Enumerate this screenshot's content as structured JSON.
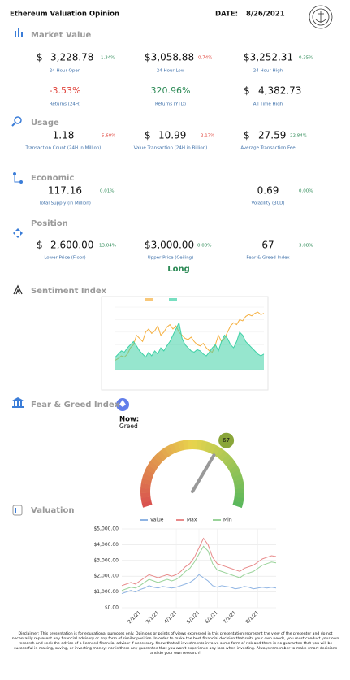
{
  "header": {
    "title": "Ethereum Valuation Opinion",
    "date_label": "DATE:",
    "date": "8/26/2021"
  },
  "market_value": {
    "title": "Market Value",
    "items": [
      {
        "prefix": "$",
        "value": "3,228.78",
        "change": "1.34%",
        "label": "24 Hour Open"
      },
      {
        "value": "$3,058.88",
        "change": "-0.74%",
        "label": "24 Hour Low"
      },
      {
        "value": "$3,252.31",
        "change": "0.35%",
        "label": "24 Hour High"
      },
      {
        "value": "-3.53%",
        "label": "Returns (24H)"
      },
      {
        "value": "320.96%",
        "label": "Returns (YTD)"
      },
      {
        "prefix": "$",
        "value": "4,382.73",
        "label": "All Time High"
      }
    ]
  },
  "usage": {
    "title": "Usage",
    "items": [
      {
        "value": "1.18",
        "change": "-5.60%",
        "label": "Transaction Count (24H in Million)"
      },
      {
        "prefix": "$",
        "value": "10.99",
        "change": "-2.17%",
        "label": "Value Transaction (24H in Billion)"
      },
      {
        "prefix": "$",
        "value": "27.59",
        "change": "22.84%",
        "label": "Average Transaction Fee"
      }
    ]
  },
  "economic": {
    "title": "Economic",
    "items": [
      {
        "value": "117.16",
        "change": "0.01%",
        "label": "Total Supply (in Million)"
      },
      {
        "value": "0.69",
        "change": "0.00%",
        "label": "Volatility (30D)"
      }
    ]
  },
  "position": {
    "title": "Position",
    "items": [
      {
        "prefix": "$",
        "value": "2,600.00",
        "change": "13.04%",
        "label": "Lower Price (Floor)"
      },
      {
        "value": "$3,000.00",
        "change": "0.00%",
        "label": "Upper Price (Ceiling)"
      },
      {
        "value": "67",
        "change": "3.08%",
        "label": "Fear & Greed Index"
      }
    ],
    "signal": "Long"
  },
  "sentiment_index": {
    "title": "Sentiment Index",
    "chart": {
      "type": "line",
      "ylim": [
        0,
        100
      ],
      "series": [
        {
          "color": "#f5b041",
          "values": [
            15,
            18,
            22,
            20,
            25,
            35,
            40,
            55,
            50,
            45,
            60,
            65,
            58,
            62,
            70,
            55,
            60,
            68,
            72,
            65,
            70,
            60,
            55,
            50,
            48,
            52,
            45,
            40,
            38,
            42,
            35,
            30,
            28,
            40,
            55,
            45,
            50,
            60,
            70,
            75,
            72,
            80,
            78,
            85,
            88,
            86,
            90,
            92,
            88,
            90
          ]
        },
        {
          "color": "#3fd1a6",
          "area": true,
          "values": [
            20,
            25,
            30,
            28,
            35,
            40,
            45,
            38,
            30,
            25,
            20,
            28,
            22,
            30,
            25,
            35,
            30,
            38,
            45,
            55,
            65,
            75,
            50,
            40,
            35,
            30,
            28,
            32,
            30,
            25,
            22,
            28,
            35,
            40,
            30,
            45,
            55,
            50,
            40,
            35,
            45,
            60,
            55,
            45,
            40,
            35,
            30,
            25,
            22,
            25
          ]
        }
      ]
    }
  },
  "fear_greed_index": {
    "title": "Fear & Greed Index",
    "now_label": "Now:",
    "status": "Greed",
    "gauge": {
      "type": "gauge",
      "value": 67,
      "range": [
        0,
        100
      ]
    }
  },
  "valuation": {
    "title": "Valuation",
    "chart": {
      "type": "line",
      "categories": [
        null,
        null,
        null,
        null,
        "2/1/21",
        null,
        null,
        null,
        "3/1/21",
        null,
        null,
        null,
        "4/1/21",
        null,
        null,
        null,
        null,
        "5/1/21",
        null,
        null,
        null,
        "6/1/21",
        null,
        null,
        null,
        "7/1/21",
        null,
        null,
        null,
        null,
        "8/1/21",
        null,
        null,
        null,
        null
      ],
      "ylim": [
        0,
        5000
      ],
      "yticks": [
        {
          "value": 0,
          "label": "$0.00"
        },
        {
          "value": 1000,
          "label": "$1,000.00"
        },
        {
          "value": 2000,
          "label": "$2,000.00"
        },
        {
          "value": 3000,
          "label": "$3,000.00"
        },
        {
          "value": 4000,
          "label": "$4,000.00"
        },
        {
          "value": 5000,
          "label": "$5,000.00"
        }
      ],
      "grid": true,
      "series": [
        {
          "name": "Value",
          "color": "#8fb4e3",
          "values": [
            900,
            1000,
            1100,
            1000,
            1150,
            1250,
            1400,
            1300,
            1250,
            1350,
            1300,
            1250,
            1300,
            1400,
            1500,
            1600,
            1800,
            2100,
            1900,
            1700,
            1400,
            1300,
            1400,
            1350,
            1300,
            1200,
            1250,
            1350,
            1300,
            1200,
            1250,
            1300,
            1250,
            1300,
            1250
          ]
        },
        {
          "name": "Max",
          "color": "#e88a8a",
          "values": [
            1400,
            1500,
            1600,
            1500,
            1700,
            1900,
            2100,
            2000,
            1900,
            2000,
            2100,
            2000,
            2100,
            2300,
            2600,
            2800,
            3200,
            3800,
            4400,
            4000,
            3200,
            2800,
            2700,
            2600,
            2500,
            2400,
            2300,
            2500,
            2600,
            2700,
            2900,
            3100,
            3200,
            3300,
            3250
          ]
        },
        {
          "name": "Min",
          "color": "#9ad39a",
          "values": [
            1100,
            1200,
            1300,
            1250,
            1400,
            1600,
            1800,
            1700,
            1600,
            1700,
            1800,
            1700,
            1800,
            2000,
            2300,
            2500,
            2900,
            3400,
            3900,
            3600,
            2800,
            2400,
            2300,
            2200,
            2100,
            2000,
            1900,
            2100,
            2200,
            2300,
            2500,
            2700,
            2800,
            2900,
            2850
          ]
        }
      ]
    }
  },
  "disclaimer": "Disclaimer: This presentation is for educational purposes only. Opinions or points of views expressed in this presentation represent the view of the presenter and do not necessarily represent any financial advisory or any form of similar position. In order to make the best financial decision that suits your own needs, you must conduct your own research and seek the advice of a licensed financial advisor if necessary. Know that all investments involve some form of risk and there is no guarantee that you will be successful in making, saving, or investing money; nor is there any guarantee that you won't experience any loss when investing. Always remember to make smart decisions and do your own research!"
}
